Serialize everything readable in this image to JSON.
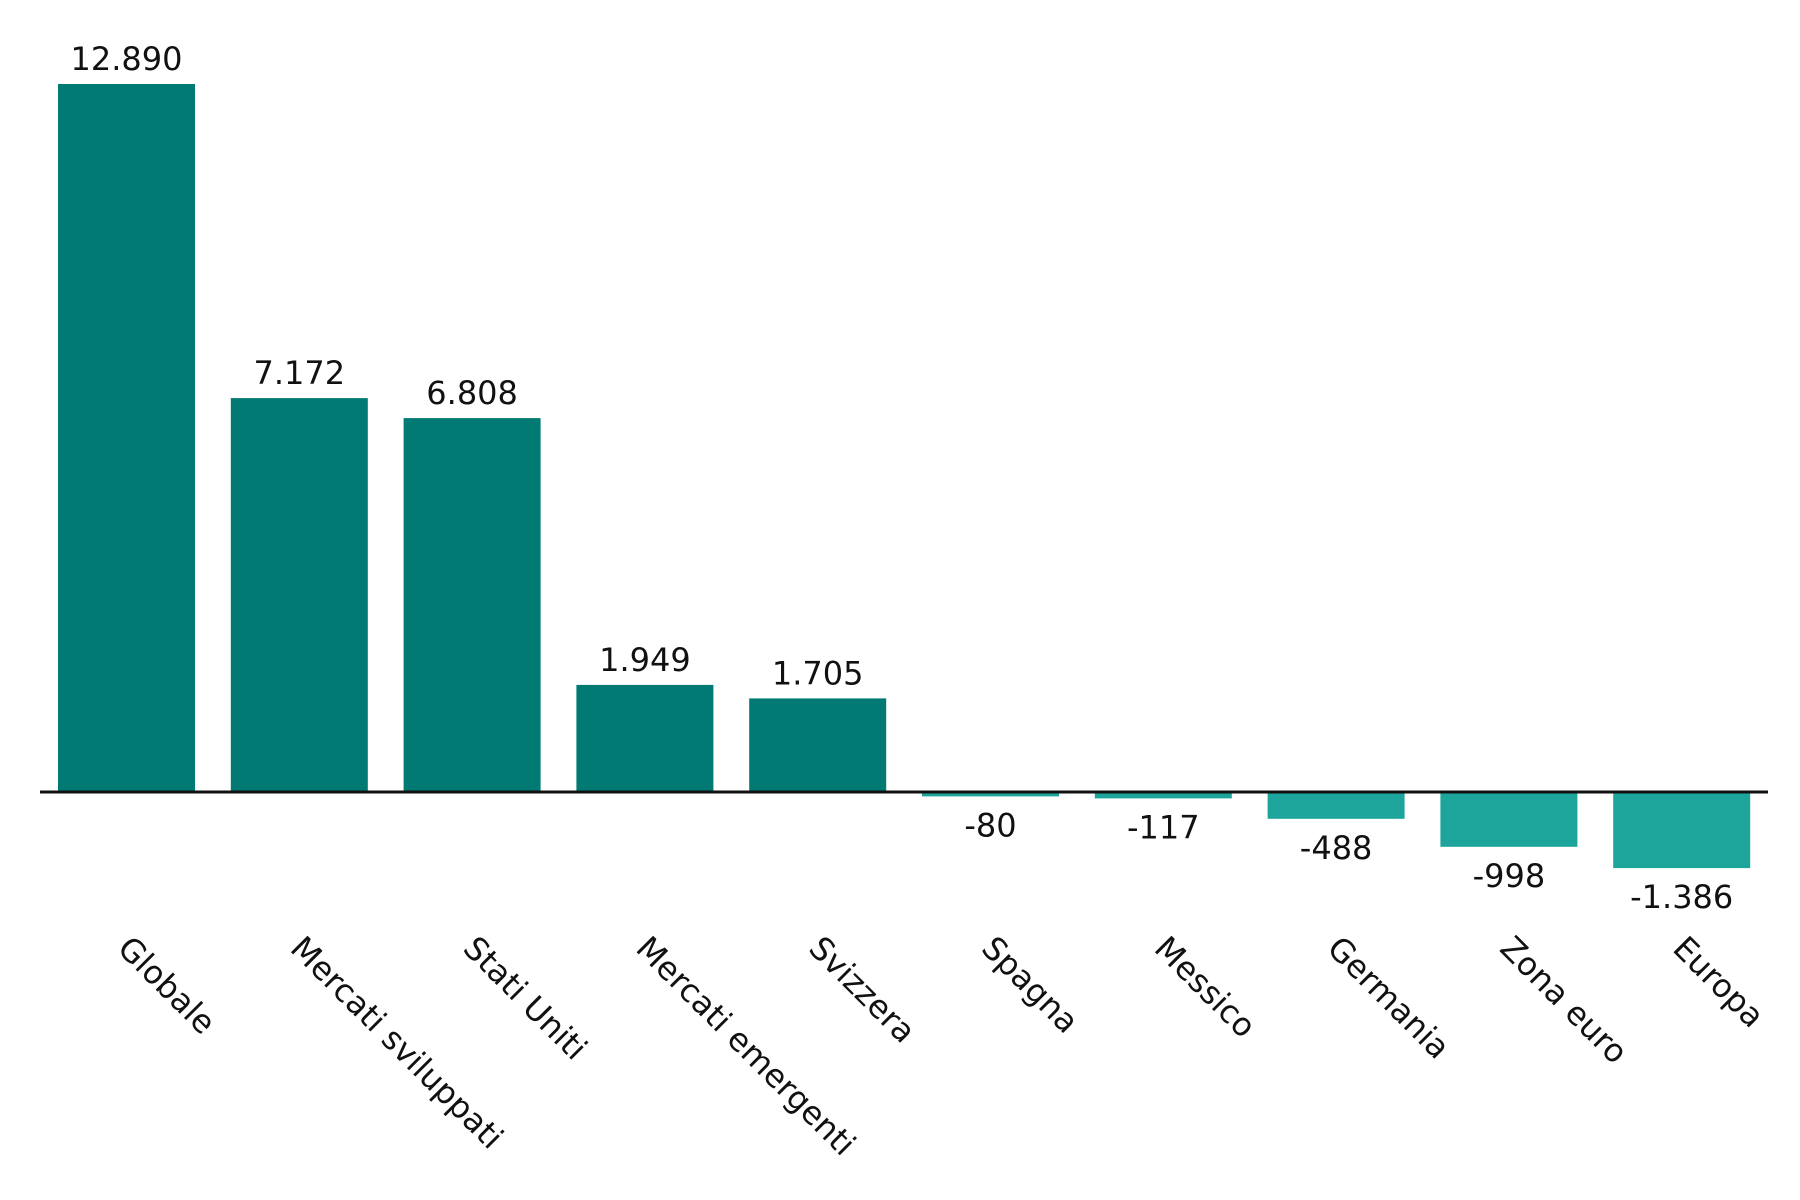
{
  "chart_data": {
    "type": "bar",
    "categories": [
      "Globale",
      "Mercati sviluppati",
      "Stati Uniti",
      "Mercati emergenti",
      "Svizzera",
      "Spagna",
      "Messico",
      "Germania",
      "Zona euro",
      "Europa"
    ],
    "values": [
      12890,
      7172,
      6808,
      1949,
      1705,
      -80,
      -117,
      -488,
      -998,
      -1386
    ],
    "value_labels": [
      "12.890",
      "7.172",
      "6.808",
      "1.949",
      "1.705",
      "-80",
      "-117",
      "-488",
      "-998",
      "-1.386"
    ],
    "title": "",
    "xlabel": "",
    "ylabel": "",
    "ylim": [
      -1386,
      12890
    ],
    "grid": false,
    "legend": "none",
    "colors": {
      "positive": "#017A73",
      "negative": "#1DA59C",
      "axis": "#111111"
    }
  }
}
